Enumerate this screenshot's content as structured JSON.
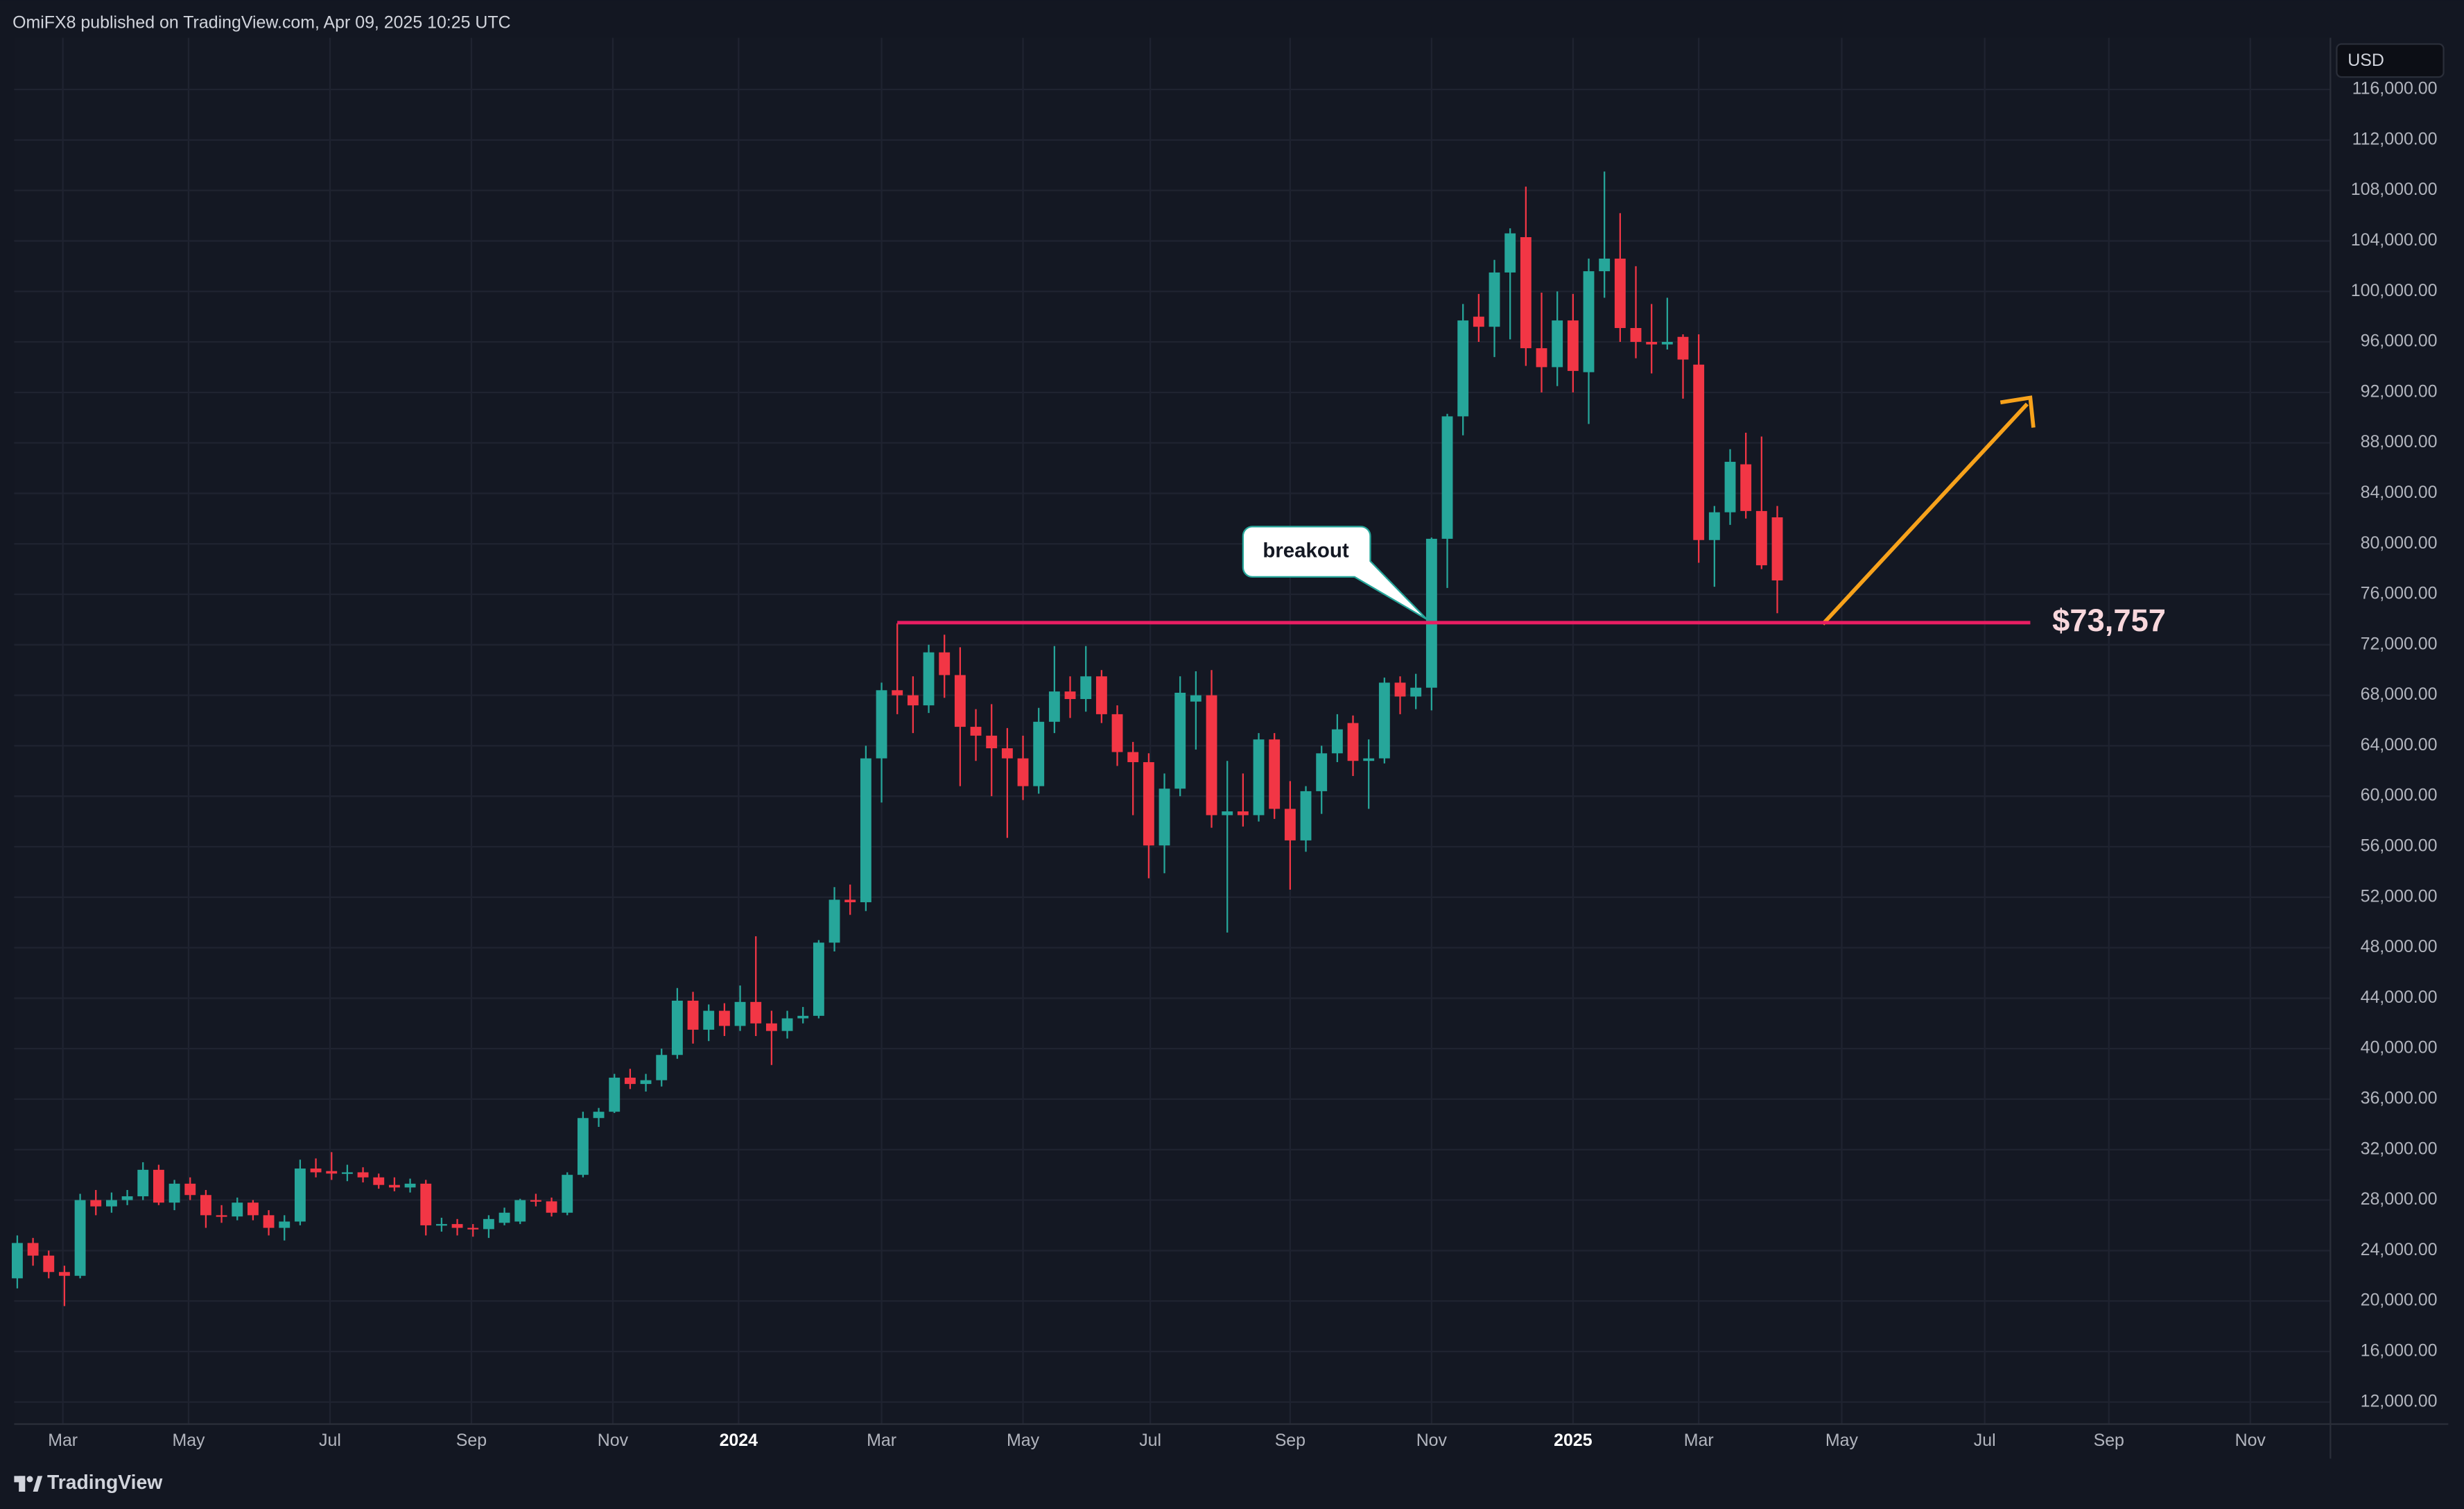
{
  "header": "OmiFX8 published on TradingView.com, Apr 09, 2025 10:25 UTC",
  "footer": "TradingView",
  "chart_data": {
    "type": "candlestick",
    "currency": "USD",
    "grid": true,
    "colors": {
      "up": "#26a69a",
      "down": "#f23645"
    },
    "open": [
      21800,
      24600,
      23600,
      22300,
      22000,
      28000,
      27500,
      28000,
      28300,
      30400,
      27800,
      29300,
      28400,
      26800,
      26700,
      27800,
      26800,
      25800,
      26300,
      30500,
      30300,
      30100,
      30200,
      29800,
      29200,
      29000,
      29300,
      26000,
      26100,
      25800,
      25700,
      26200,
      26300,
      28000,
      27900,
      27000,
      30000,
      34500,
      35000,
      37700,
      37200,
      37500,
      39500,
      43800,
      41500,
      43000,
      41800,
      43700,
      42000,
      41400,
      42400,
      42600,
      48400,
      51800,
      51600,
      63000,
      68400,
      68000,
      67200,
      71400,
      69600,
      65500,
      64800,
      63800,
      63000,
      60800,
      65900,
      68300,
      67700,
      69500,
      66500,
      63500,
      62700,
      56100,
      60600,
      67500,
      68000,
      58500,
      58800,
      58500,
      64500,
      59000,
      56500,
      60400,
      63400,
      65800,
      62800,
      63000,
      69000,
      67900,
      68600,
      80400,
      90100,
      98000,
      97200,
      101500,
      104300,
      95500,
      94000,
      97700,
      93600,
      101600,
      102600,
      97100,
      96000,
      95800,
      96400,
      94200,
      80300,
      82500,
      86300,
      82600,
      82100
    ],
    "high": [
      25200,
      25000,
      24000,
      22800,
      28500,
      28800,
      28600,
      28800,
      31000,
      30800,
      29600,
      29800,
      28800,
      27600,
      28200,
      28000,
      27200,
      26800,
      31200,
      31300,
      31800,
      30800,
      30600,
      30100,
      29800,
      29700,
      29600,
      26600,
      26500,
      26100,
      26800,
      27400,
      28100,
      28500,
      28200,
      30200,
      35000,
      35300,
      38000,
      38400,
      38000,
      40000,
      44800,
      44500,
      43500,
      43600,
      45000,
      48900,
      43000,
      43000,
      43300,
      48600,
      52800,
      53000,
      64000,
      69000,
      73700,
      69500,
      72000,
      72800,
      71800,
      66900,
      67300,
      65400,
      64800,
      67000,
      71900,
      69500,
      71900,
      70000,
      67200,
      64300,
      63400,
      61800,
      69500,
      69900,
      70000,
      62800,
      61800,
      65000,
      65000,
      61200,
      60800,
      64000,
      66500,
      66400,
      64500,
      69400,
      69500,
      69700,
      80500,
      90300,
      99000,
      99800,
      102500,
      105000,
      108300,
      99900,
      100000,
      99800,
      102600,
      109500,
      106200,
      102000,
      99000,
      99500,
      96600,
      96600,
      83000,
      87500,
      88800,
      88500,
      83000
    ],
    "low": [
      21000,
      22800,
      21800,
      19600,
      21800,
      26800,
      27000,
      27600,
      28000,
      27600,
      27200,
      28000,
      25800,
      26200,
      26400,
      26400,
      25200,
      24800,
      26000,
      29800,
      29600,
      29500,
      29400,
      28900,
      28700,
      28600,
      25200,
      25500,
      25200,
      25100,
      25000,
      26000,
      26100,
      27500,
      26700,
      26800,
      29800,
      33800,
      34900,
      36800,
      36600,
      37000,
      39200,
      40400,
      40600,
      41000,
      41400,
      41000,
      38700,
      40800,
      42000,
      42400,
      47700,
      50600,
      50900,
      59500,
      66500,
      65000,
      66600,
      67800,
      60800,
      62800,
      60000,
      56700,
      59700,
      60200,
      65000,
      66200,
      66700,
      65800,
      62400,
      58500,
      53500,
      53900,
      60000,
      63700,
      57500,
      49200,
      57600,
      58000,
      58200,
      52600,
      55600,
      58600,
      62700,
      61600,
      59000,
      62600,
      66500,
      66900,
      66800,
      76500,
      88600,
      96000,
      94800,
      96200,
      94100,
      92000,
      92500,
      92000,
      89500,
      99500,
      96000,
      94700,
      93500,
      95400,
      91500,
      78500,
      76600,
      81500,
      82000,
      78000,
      74500
    ],
    "close": [
      24600,
      23600,
      22300,
      22000,
      28000,
      27500,
      28000,
      28300,
      30400,
      27800,
      29300,
      28400,
      26800,
      26700,
      27800,
      26800,
      25800,
      26300,
      30500,
      30200,
      30100,
      30200,
      29800,
      29200,
      29000,
      29300,
      26000,
      26100,
      25800,
      25700,
      26500,
      27000,
      28000,
      27900,
      27000,
      30000,
      34500,
      35000,
      37700,
      37200,
      37500,
      39500,
      43800,
      41500,
      43000,
      41800,
      43700,
      42000,
      41400,
      42400,
      42600,
      48400,
      51800,
      51600,
      63000,
      68400,
      68000,
      67200,
      71400,
      69600,
      65500,
      64800,
      63800,
      63000,
      60800,
      65900,
      68300,
      67700,
      69500,
      66500,
      63500,
      62700,
      56100,
      60600,
      68200,
      68000,
      58500,
      58800,
      58500,
      64500,
      59000,
      56500,
      60400,
      63400,
      65300,
      62800,
      63000,
      69000,
      67900,
      68600,
      80400,
      90100,
      97700,
      97200,
      101500,
      104600,
      95500,
      94000,
      97700,
      93700,
      101600,
      102600,
      97100,
      96000,
      95800,
      96000,
      94600,
      80300,
      82500,
      86500,
      82600,
      78300,
      77100
    ],
    "xlim": [
      -0.2,
      147.2
    ],
    "xticks": [
      {
        "value": 2.9,
        "label": "Mar"
      },
      {
        "value": 10.9,
        "label": "May"
      },
      {
        "value": 19.9,
        "label": "Jul"
      },
      {
        "value": 28.9,
        "label": "Sep"
      },
      {
        "value": 37.9,
        "label": "Nov"
      },
      {
        "value": 45.9,
        "label": "2024"
      },
      {
        "value": 55,
        "label": "Mar"
      },
      {
        "value": 64,
        "label": "May"
      },
      {
        "value": 72.1,
        "label": "Jul"
      },
      {
        "value": 81,
        "label": "Sep"
      },
      {
        "value": 90,
        "label": "Nov"
      },
      {
        "value": 99,
        "label": "2025"
      },
      {
        "value": 107,
        "label": "Mar"
      },
      {
        "value": 116.1,
        "label": "May"
      },
      {
        "value": 125.2,
        "label": "Jul"
      },
      {
        "value": 133.1,
        "label": "Sep"
      },
      {
        "value": 142.1,
        "label": "Nov"
      }
    ],
    "ylim": [
      10250,
      120100
    ],
    "yticks": [
      {
        "value": 12000,
        "label": "12,000.00"
      },
      {
        "value": 16000,
        "label": "16,000.00"
      },
      {
        "value": 20000,
        "label": "20,000.00"
      },
      {
        "value": 24000,
        "label": "24,000.00"
      },
      {
        "value": 28000,
        "label": "28,000.00"
      },
      {
        "value": 32000,
        "label": "32,000.00"
      },
      {
        "value": 36000,
        "label": "36,000.00"
      },
      {
        "value": 40000,
        "label": "40,000.00"
      },
      {
        "value": 44000,
        "label": "44,000.00"
      },
      {
        "value": 48000,
        "label": "48,000.00"
      },
      {
        "value": 52000,
        "label": "52,000.00"
      },
      {
        "value": 56000,
        "label": "56,000.00"
      },
      {
        "value": 60000,
        "label": "60,000.00"
      },
      {
        "value": 64000,
        "label": "64,000.00"
      },
      {
        "value": 68000,
        "label": "68,000.00"
      },
      {
        "value": 72000,
        "label": "72,000.00"
      },
      {
        "value": 76000,
        "label": "76,000.00"
      },
      {
        "value": 80000,
        "label": "80,000.00"
      },
      {
        "value": 84000,
        "label": "84,000.00"
      },
      {
        "value": 88000,
        "label": "88,000.00"
      },
      {
        "value": 92000,
        "label": "92,000.00"
      },
      {
        "value": 96000,
        "label": "96,000.00"
      },
      {
        "value": 100000,
        "label": "100,000.00"
      },
      {
        "value": 104000,
        "label": "104,000.00"
      },
      {
        "value": 108000,
        "label": "108,000.00"
      },
      {
        "value": 112000,
        "label": "112,000.00"
      },
      {
        "value": 116000,
        "label": "116,000.00"
      }
    ],
    "annotations": [
      {
        "text": "breakout"
      },
      {
        "label": "$73,757",
        "value": 73757
      }
    ]
  }
}
